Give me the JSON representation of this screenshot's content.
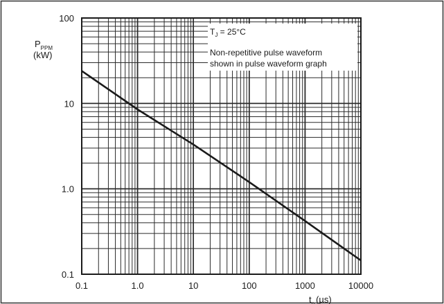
{
  "chart_data": {
    "type": "line",
    "title": "",
    "xlabel": "t",
    "xlabel_sub": "p",
    "xunit": "(µs)",
    "ylabel": "P",
    "ylabel_sub": "PPM",
    "yunit": "(kW)",
    "xscale": "log",
    "yscale": "log",
    "xlim": [
      0.1,
      10000
    ],
    "ylim": [
      0.1,
      100
    ],
    "xticks": [
      0.1,
      1,
      10,
      100,
      1000,
      10000
    ],
    "xtick_labels": [
      "0.1",
      "1.0",
      "10",
      "100",
      "1000",
      "10000"
    ],
    "yticks": [
      0.1,
      1,
      10,
      100
    ],
    "ytick_labels": [
      "0.1",
      "1.0",
      "10",
      "100"
    ],
    "grid": true,
    "series": [
      {
        "x": [
          0.1,
          1,
          10,
          100,
          1000,
          10000
        ],
        "y": [
          24,
          8.5,
          3.3,
          1.2,
          0.42,
          0.145
        ]
      }
    ],
    "annotation": {
      "temp_prefix": "T",
      "temp_sub": "J",
      "temp_value": " = 25°C",
      "line1": "Non-repetitive pulse waveform",
      "line2": "shown in pulse waveform graph"
    },
    "colors": {
      "line": "#1a1a1a",
      "grid": "#2a2a2a",
      "frame": "#333333"
    }
  }
}
